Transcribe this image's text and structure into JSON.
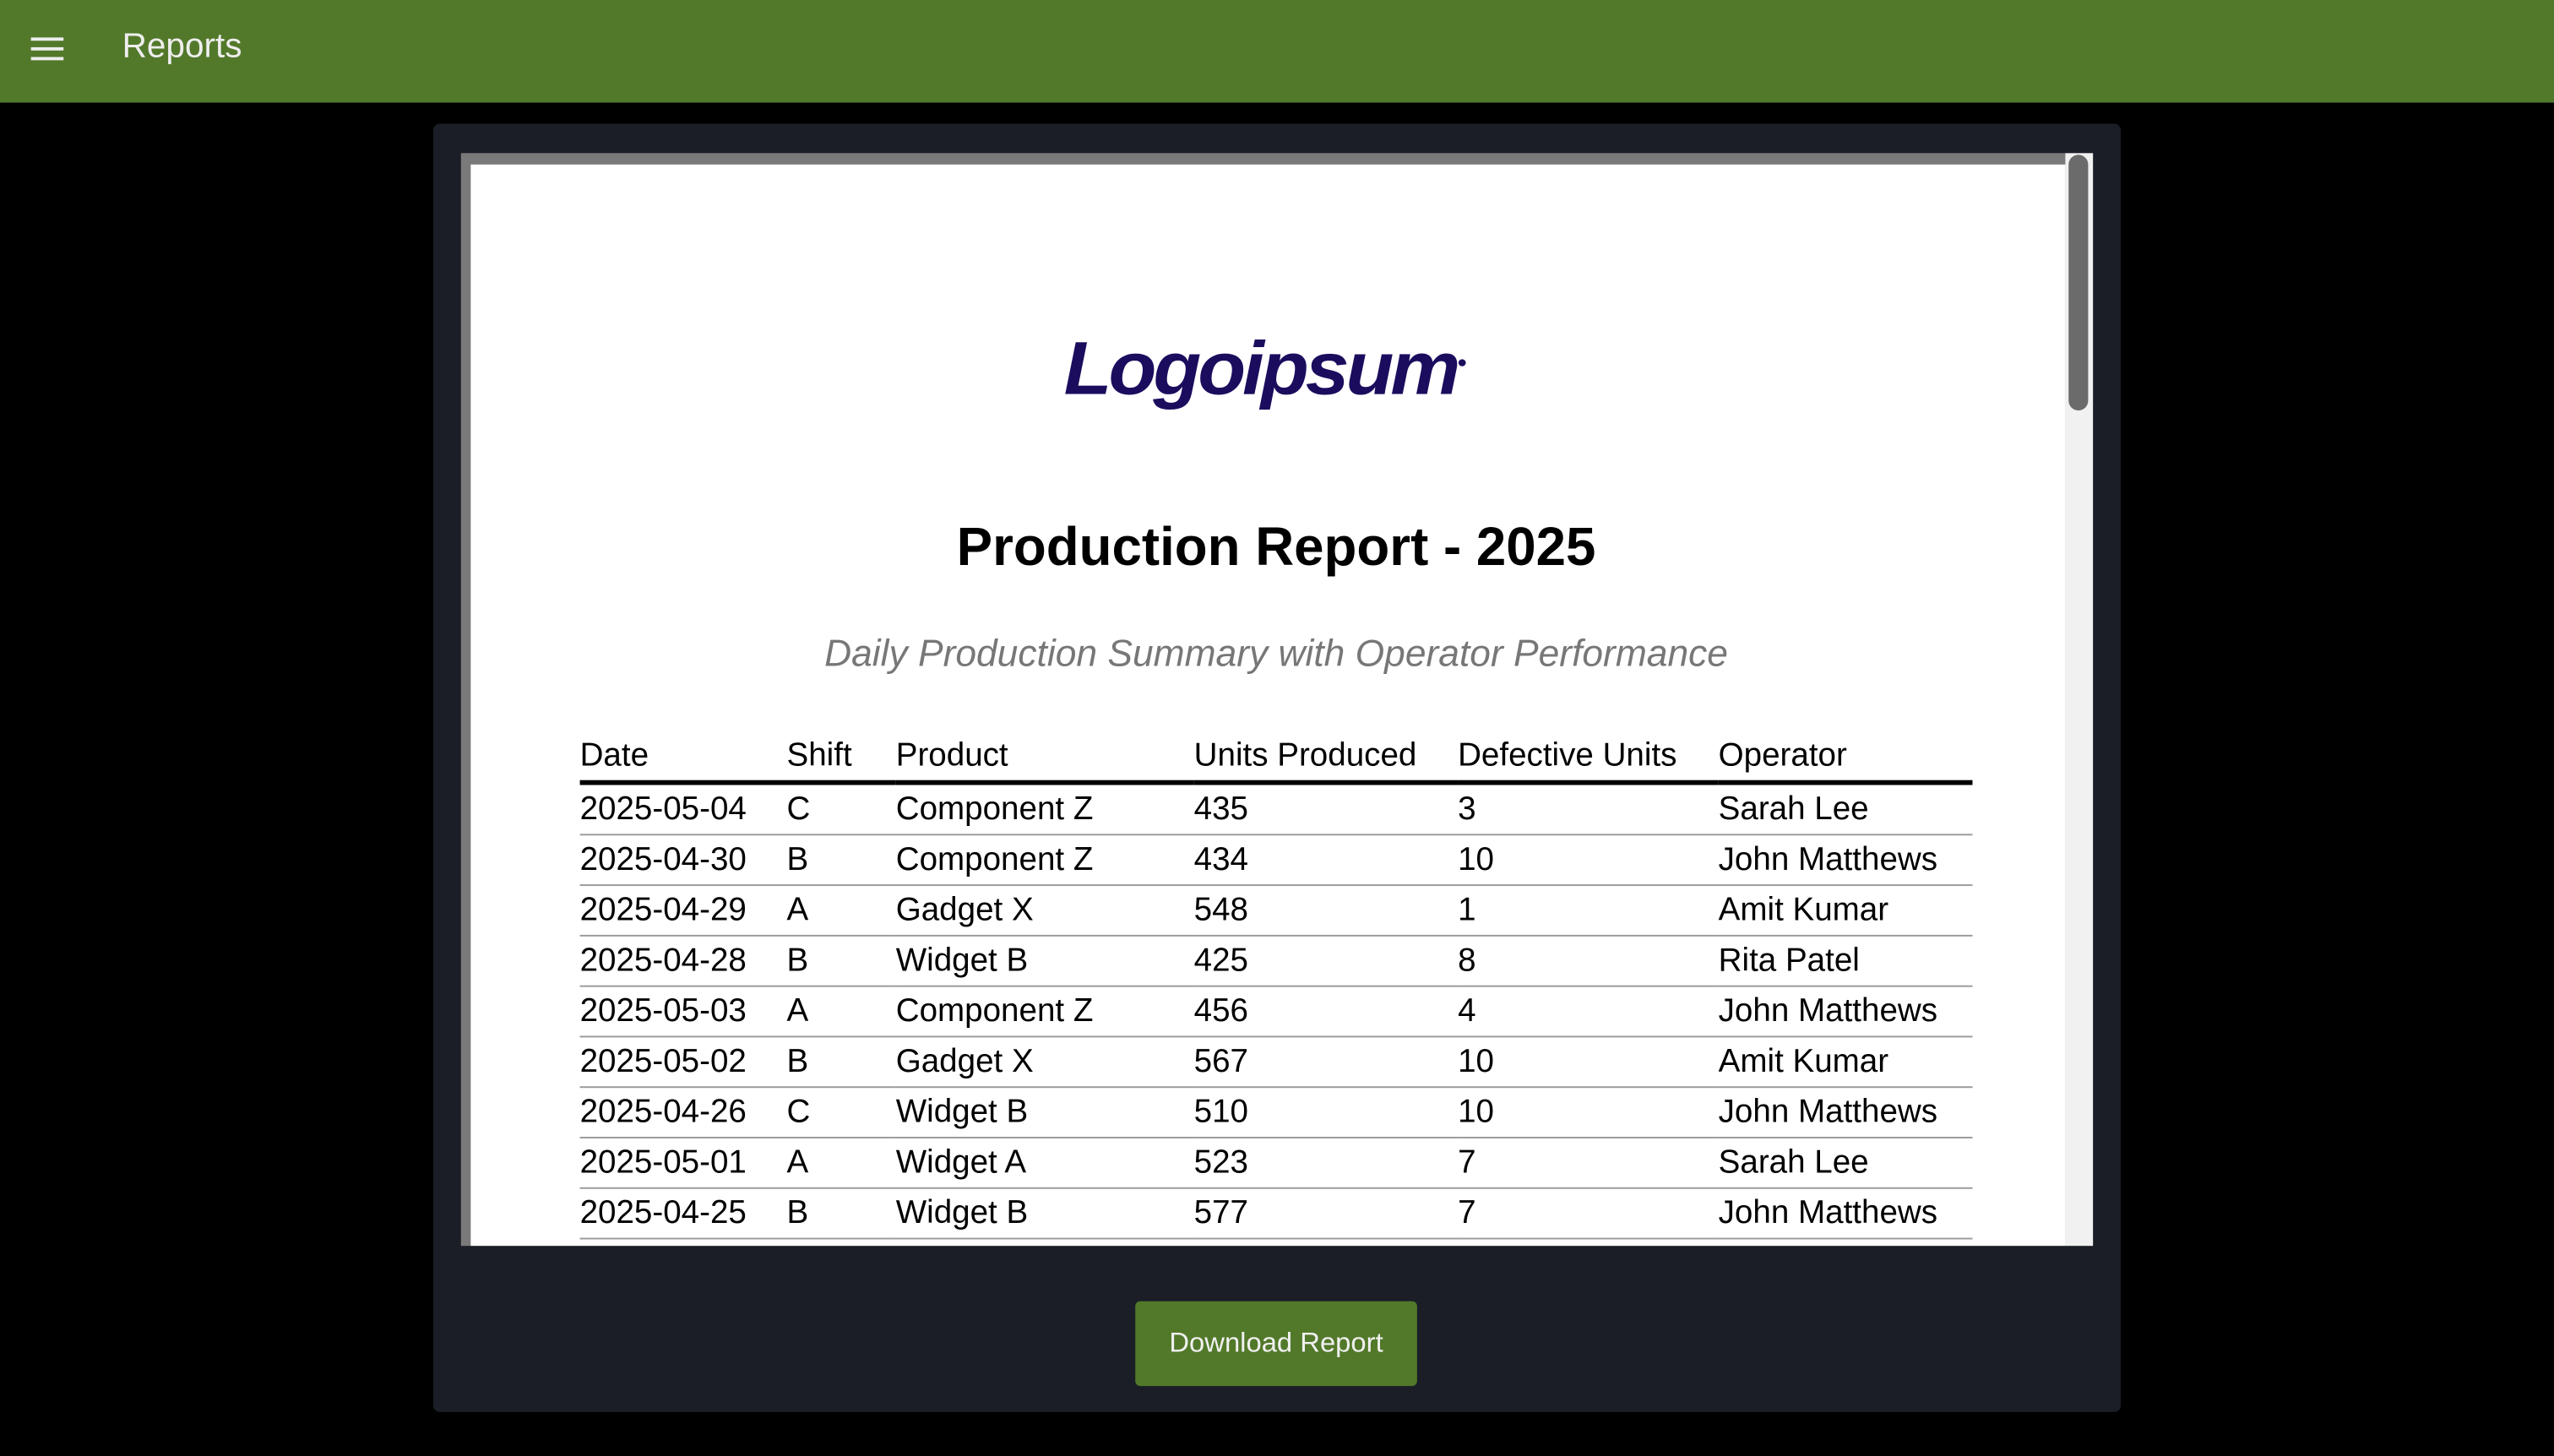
{
  "header": {
    "title": "Reports",
    "menu_icon": "hamburger-menu-icon",
    "color": "#52792a"
  },
  "document": {
    "logo_text": "Logoipsum",
    "title": "Production Report - 2025",
    "subtitle": "Daily Production Summary with Operator Performance",
    "table": {
      "columns": [
        "Date",
        "Shift",
        "Product",
        "Units Produced",
        "Defective Units",
        "Operator"
      ],
      "rows": [
        [
          "2025-05-04",
          "C",
          "Component Z",
          "435",
          "3",
          "Sarah Lee"
        ],
        [
          "2025-04-30",
          "B",
          "Component Z",
          "434",
          "10",
          "John Matthews"
        ],
        [
          "2025-04-29",
          "A",
          "Gadget X",
          "548",
          "1",
          "Amit Kumar"
        ],
        [
          "2025-04-28",
          "B",
          "Widget B",
          "425",
          "8",
          "Rita Patel"
        ],
        [
          "2025-05-03",
          "A",
          "Component Z",
          "456",
          "4",
          "John Matthews"
        ],
        [
          "2025-05-02",
          "B",
          "Gadget X",
          "567",
          "10",
          "Amit Kumar"
        ],
        [
          "2025-04-26",
          "C",
          "Widget B",
          "510",
          "10",
          "John Matthews"
        ],
        [
          "2025-05-01",
          "A",
          "Widget A",
          "523",
          "7",
          "Sarah Lee"
        ],
        [
          "2025-04-25",
          "B",
          "Widget B",
          "577",
          "7",
          "John Matthews"
        ]
      ]
    }
  },
  "actions": {
    "download_label": "Download Report"
  }
}
